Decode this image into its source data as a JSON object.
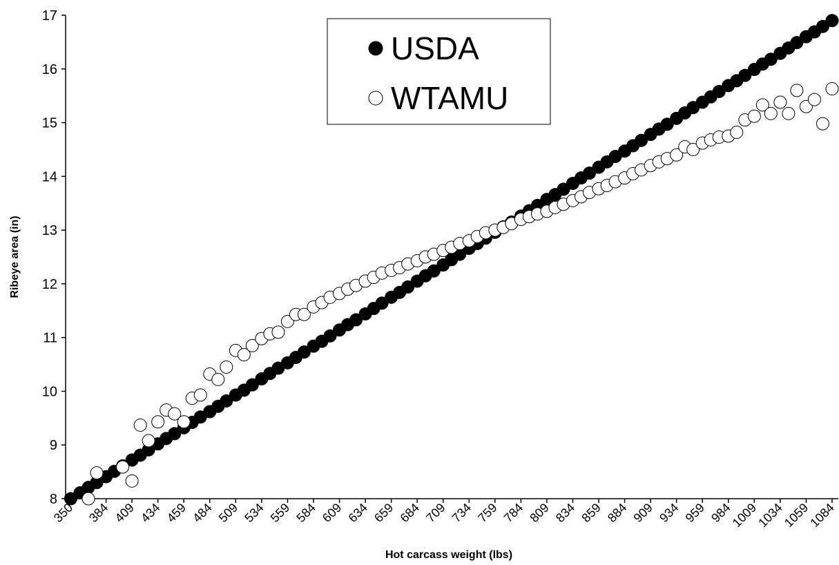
{
  "chart_data": {
    "type": "scatter",
    "xlabel": "Hot carcass weight (lbs)",
    "ylabel": "Ribeye area (in)",
    "x": [
      350,
      359,
      367,
      375,
      384,
      392,
      400,
      409,
      417,
      425,
      434,
      442,
      450,
      459,
      467,
      475,
      484,
      492,
      500,
      509,
      517,
      525,
      534,
      542,
      550,
      559,
      567,
      575,
      584,
      592,
      600,
      609,
      617,
      625,
      634,
      642,
      650,
      659,
      667,
      675,
      684,
      692,
      700,
      709,
      717,
      725,
      734,
      742,
      750,
      759,
      767,
      775,
      784,
      792,
      800,
      809,
      817,
      825,
      834,
      842,
      850,
      859,
      867,
      875,
      884,
      892,
      900,
      909,
      917,
      925,
      934,
      942,
      950,
      959,
      967,
      975,
      984,
      992,
      1000,
      1009,
      1017,
      1025,
      1034,
      1042,
      1050,
      1059,
      1067,
      1075,
      1084
    ],
    "series": [
      {
        "name": "USDA",
        "color": "#000000",
        "edgecolor": "#000000",
        "values": [
          8.0,
          8.11,
          8.21,
          8.3,
          8.41,
          8.51,
          8.61,
          8.72,
          8.81,
          8.91,
          9.02,
          9.12,
          9.21,
          9.32,
          9.42,
          9.52,
          9.62,
          9.72,
          9.82,
          9.93,
          10.02,
          10.12,
          10.23,
          10.33,
          10.43,
          10.53,
          10.63,
          10.73,
          10.84,
          10.93,
          11.03,
          11.14,
          11.24,
          11.33,
          11.44,
          11.54,
          11.64,
          11.75,
          11.84,
          11.94,
          12.05,
          12.15,
          12.24,
          12.35,
          12.45,
          12.55,
          12.66,
          12.75,
          12.85,
          12.96,
          13.06,
          13.15,
          13.26,
          13.36,
          13.46,
          13.57,
          13.66,
          13.76,
          13.87,
          13.97,
          14.06,
          14.17,
          14.27,
          14.37,
          14.47,
          14.57,
          14.67,
          14.78,
          14.88,
          14.97,
          15.08,
          15.18,
          15.28,
          15.38,
          15.48,
          15.58,
          15.69,
          15.78,
          15.88,
          15.99,
          16.09,
          16.18,
          16.29,
          16.39,
          16.49,
          16.6,
          16.69,
          16.79,
          16.9
        ]
      },
      {
        "name": "WTAMU",
        "color": "#ffffff",
        "edgecolor": "#000000",
        "values": [
          null,
          null,
          8.0,
          8.48,
          null,
          null,
          8.59,
          8.33,
          9.37,
          9.08,
          9.43,
          9.65,
          9.58,
          9.43,
          9.87,
          9.93,
          10.32,
          10.22,
          10.45,
          10.76,
          10.68,
          10.85,
          10.98,
          11.07,
          11.1,
          11.3,
          11.43,
          11.43,
          11.57,
          11.65,
          11.75,
          11.82,
          11.9,
          11.97,
          12.05,
          12.12,
          12.2,
          12.25,
          12.3,
          12.37,
          12.43,
          12.5,
          12.55,
          12.62,
          12.68,
          12.75,
          12.8,
          12.88,
          12.95,
          13.0,
          13.05,
          13.12,
          13.2,
          13.25,
          13.3,
          13.35,
          13.42,
          13.48,
          13.55,
          13.62,
          13.7,
          13.77,
          13.83,
          13.9,
          13.97,
          14.05,
          14.12,
          14.2,
          14.27,
          14.33,
          14.4,
          14.55,
          14.5,
          14.62,
          14.68,
          14.73,
          14.75,
          14.82,
          15.05,
          15.12,
          15.33,
          15.17,
          15.38,
          15.17,
          15.6,
          15.3,
          15.43,
          14.98,
          15.63
        ]
      }
    ],
    "xlim": [
      345,
      1090
    ],
    "xticks": [
      350,
      384,
      409,
      434,
      459,
      484,
      509,
      534,
      559,
      584,
      609,
      634,
      659,
      684,
      709,
      734,
      759,
      784,
      809,
      834,
      859,
      884,
      909,
      934,
      959,
      984,
      1009,
      1034,
      1059,
      1084
    ],
    "ylim": [
      8,
      17
    ],
    "yticks": [
      8,
      9,
      10,
      11,
      12,
      13,
      14,
      15,
      16,
      17
    ],
    "grid": false,
    "legend": "top"
  }
}
